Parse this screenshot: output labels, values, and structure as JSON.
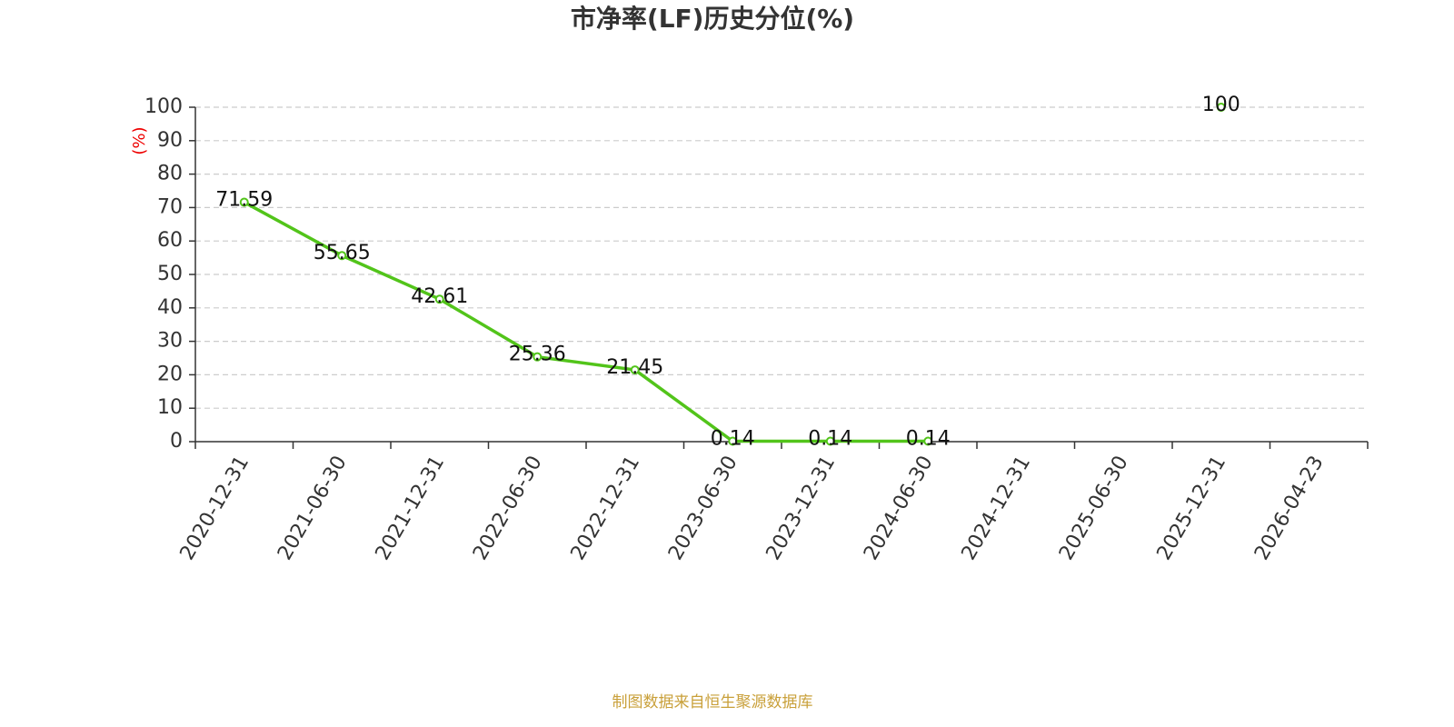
{
  "chart_data": {
    "type": "line",
    "title": "市净率(LF)历史分位(%)",
    "y_label": "(%)",
    "source": "制图数据来自恒生聚源数据库",
    "categories": [
      "2020-12-31",
      "2021-06-30",
      "2021-12-31",
      "2022-06-30",
      "2022-12-31",
      "2023-06-30",
      "2023-12-31",
      "2024-06-30",
      "2024-12-31",
      "2025-06-30",
      "2025-12-31",
      "2026-04-23"
    ],
    "values": [
      71.59,
      55.65,
      42.61,
      25.36,
      21.45,
      0.14,
      0.14,
      0.14,
      null,
      null,
      100,
      null
    ],
    "color": "#52c41a",
    "ylim": [
      0,
      100
    ],
    "yticks": [
      0,
      10,
      20,
      30,
      40,
      50,
      60,
      70,
      80,
      90,
      100
    ],
    "grid": true
  }
}
